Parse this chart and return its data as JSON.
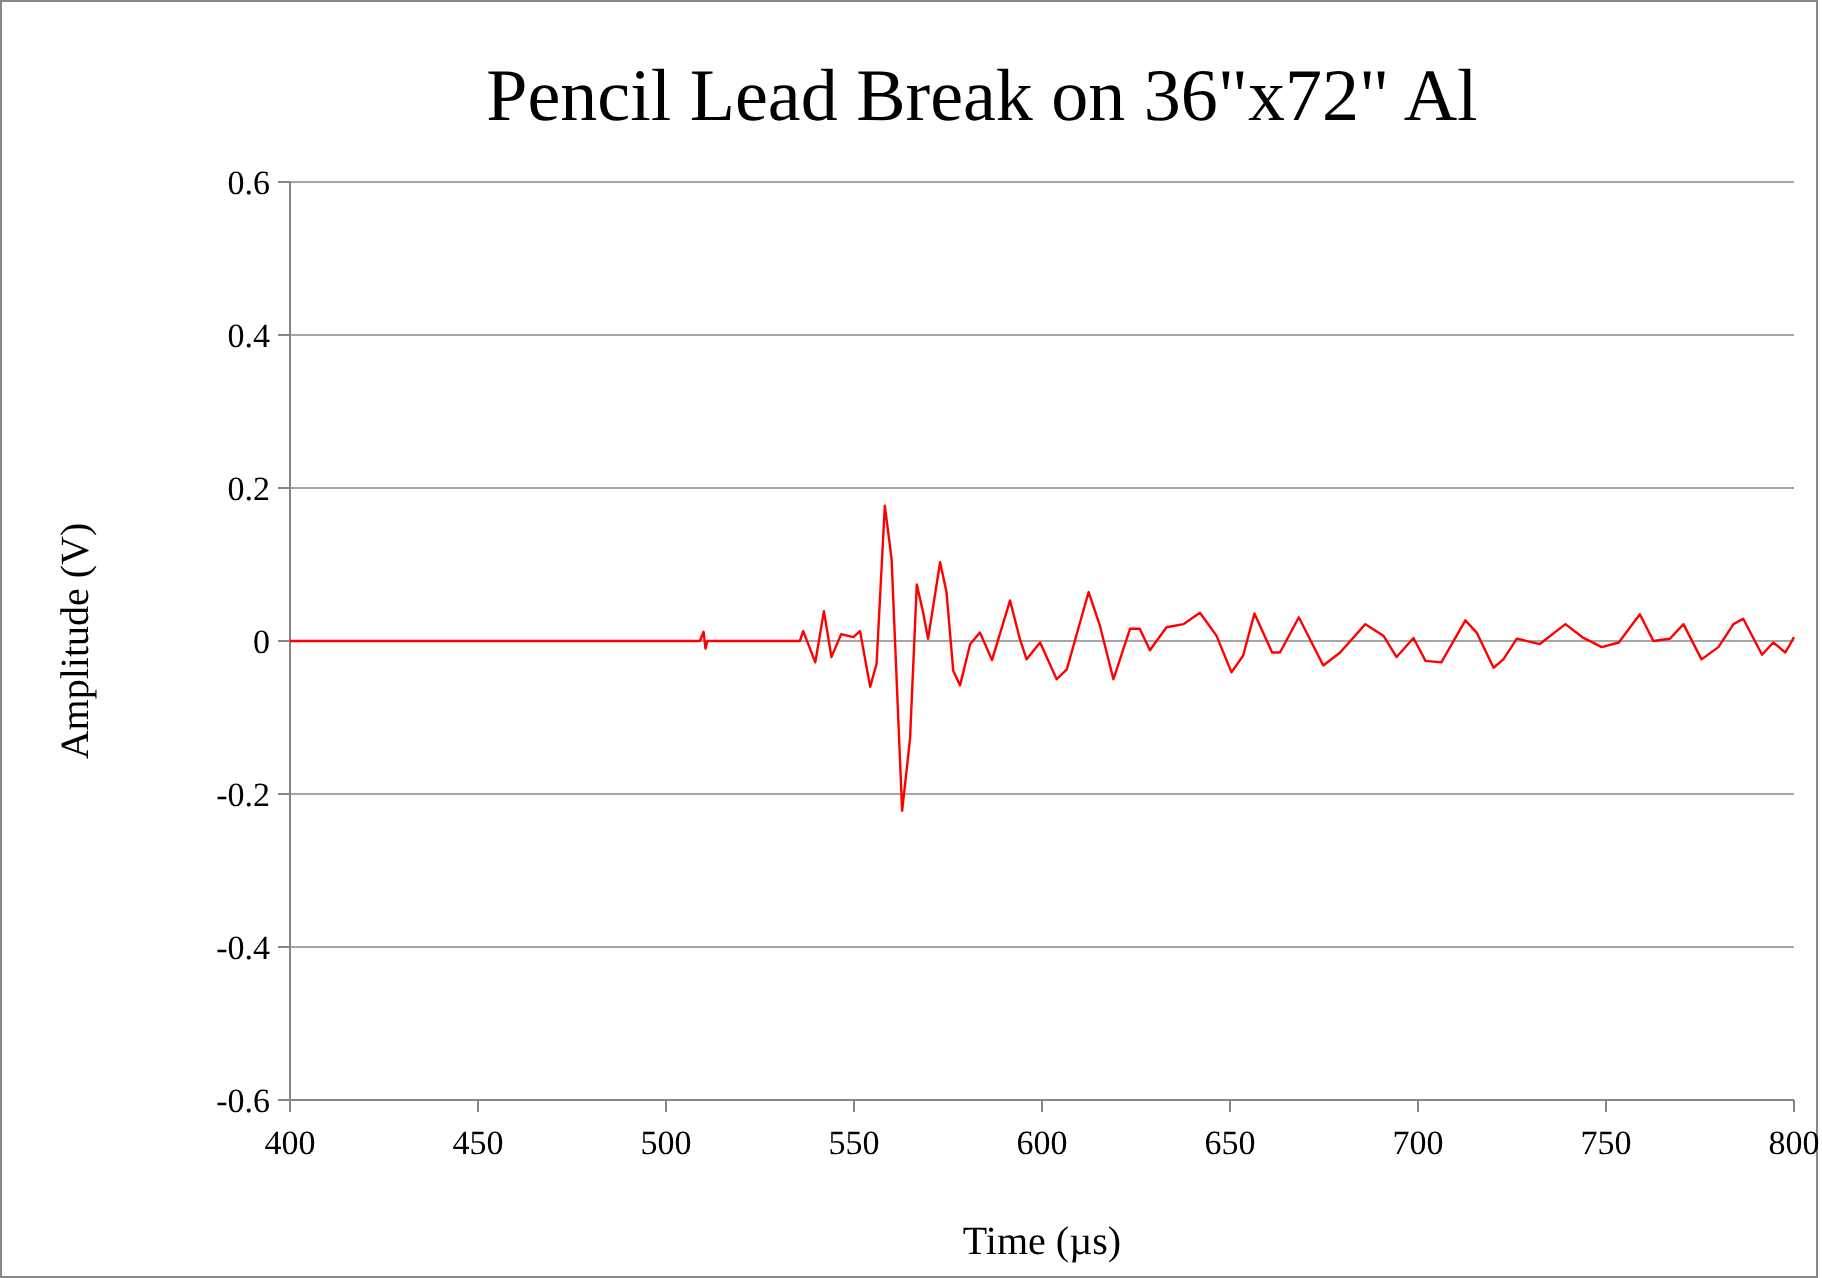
{
  "chart_data": {
    "type": "line",
    "title": "Pencil Lead Break on 36\"x72\" Al",
    "xlabel": "Time (µs)",
    "ylabel": "Amplitude (V)",
    "xlim": [
      400,
      800
    ],
    "xticks": [
      400,
      450,
      500,
      550,
      600,
      650,
      700,
      750,
      800
    ],
    "ylim": [
      -0.6,
      0.6
    ],
    "yticks": [
      -0.6,
      -0.4,
      -0.2,
      0,
      0.2,
      0.4,
      0.6
    ],
    "grid": "y",
    "marker": "none",
    "line_style": "solid",
    "series": [
      {
        "color": "#ff0000",
        "x": [
          400,
          450,
          500,
          509,
          510,
          510.5,
          511,
          535.6,
          536.5,
          539.7,
          542,
          544,
          546.6,
          549.8,
          551.6,
          554.3,
          556,
          558.2,
          560,
          562.8,
          564.9,
          566.7,
          568.4,
          569.7,
          572.9,
          574.6,
          576.4,
          578.2,
          580.9,
          583.5,
          586.7,
          591.5,
          594.1,
          595.9,
          599.5,
          603.9,
          606.6,
          612.4,
          615.4,
          619,
          623.4,
          626,
          628.7,
          633.1,
          637.6,
          642,
          646.4,
          650.4,
          653.5,
          656.5,
          661.2,
          663.3,
          668.3,
          674.8,
          679.3,
          686,
          690.8,
          694.3,
          698.8,
          702,
          706.2,
          712.6,
          715.6,
          720.1,
          722.7,
          726.3,
          732.4,
          739.2,
          744,
          748.9,
          753.4,
          759,
          762.6,
          767,
          770.6,
          775.4,
          779.9,
          783.9,
          786.5,
          791.5,
          794.5,
          797.7,
          800
        ],
        "values": [
          0,
          0,
          0,
          0,
          0.012,
          -0.01,
          0,
          0,
          0.013,
          -0.028,
          0.039,
          -0.021,
          0.009,
          0.005,
          0.013,
          -0.06,
          -0.03,
          0.177,
          0.107,
          -0.222,
          -0.128,
          0.074,
          0.037,
          0.003,
          0.103,
          0.064,
          -0.039,
          -0.058,
          -0.004,
          0.011,
          -0.025,
          0.053,
          0.003,
          -0.024,
          -0.002,
          -0.05,
          -0.037,
          0.064,
          0.02,
          -0.05,
          0.016,
          0.016,
          -0.012,
          0.018,
          0.022,
          0.037,
          0.007,
          -0.041,
          -0.019,
          0.036,
          -0.015,
          -0.015,
          0.031,
          -0.032,
          -0.015,
          0.022,
          0.007,
          -0.021,
          0.004,
          -0.026,
          -0.028,
          0.027,
          0.011,
          -0.035,
          -0.024,
          0.003,
          -0.004,
          0.022,
          0.004,
          -0.008,
          -0.002,
          0.035,
          0,
          0.003,
          0.022,
          -0.024,
          -0.008,
          0.022,
          0.029,
          -0.018,
          -0.002,
          -0.015,
          0.005
        ]
      }
    ]
  }
}
